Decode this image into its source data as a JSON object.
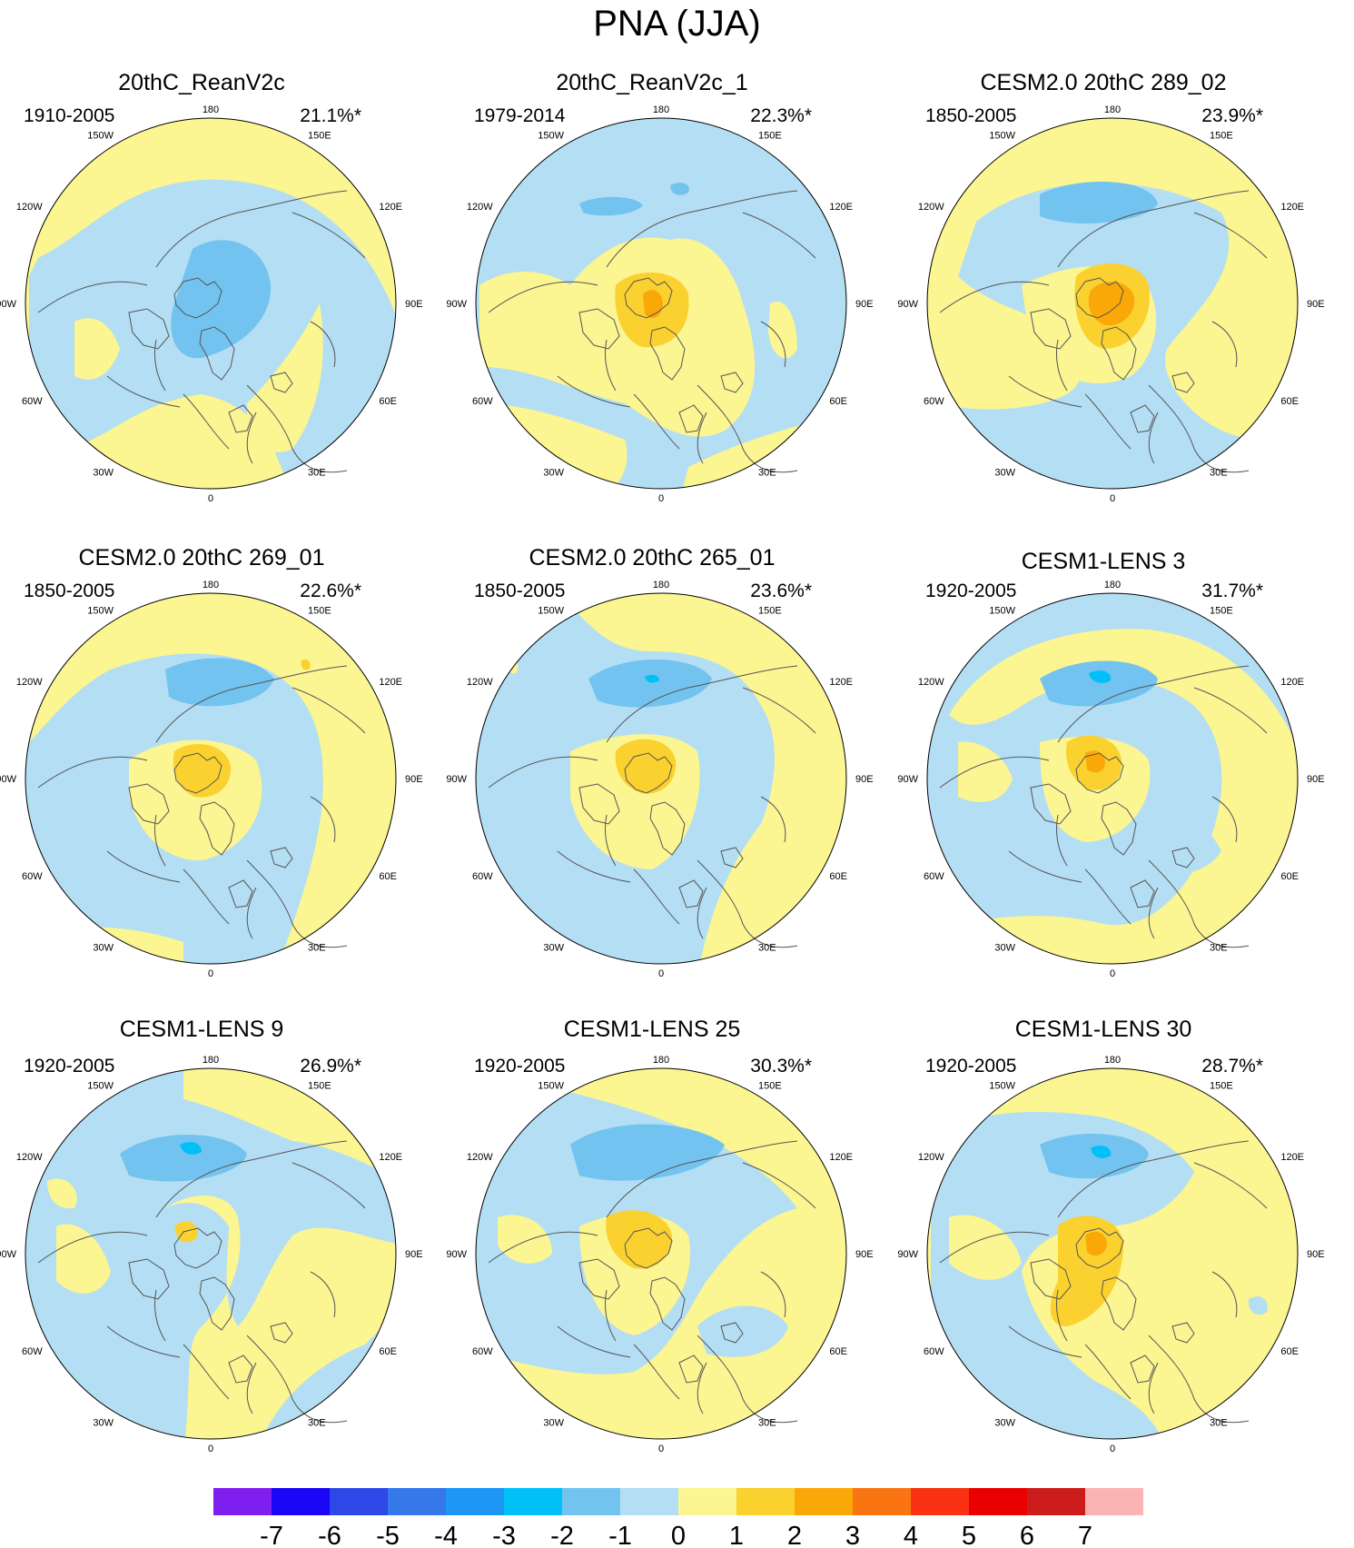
{
  "title": "PNA (JJA)",
  "colors": {
    "neg7": "#7f1fef",
    "neg6": "#1b06f5",
    "neg5": "#2e48e8",
    "neg4": "#3478ea",
    "neg3": "#1e96f6",
    "neg2": "#00c0f7",
    "neg1": "#72c3ef",
    "neg0": "#b4def3",
    "pos0": "#fbf592",
    "pos1": "#fad12f",
    "pos2": "#faa808",
    "pos3": "#fa7512",
    "pos4": "#fa3112",
    "pos5": "#ea0000",
    "pos6": "#cd1c1c",
    "pos7": "#fbb3b3"
  },
  "longitude_labels": [
    "180",
    "150E",
    "120E",
    "90E",
    "60E",
    "30E",
    "0",
    "30W",
    "60W",
    "90W",
    "120W",
    "150W"
  ],
  "panels": [
    {
      "title": "20thC_ReanV2c",
      "period": "1910-2005",
      "percent": "21.1%*"
    },
    {
      "title": "20thC_ReanV2c_1",
      "period": "1979-2014",
      "percent": "22.3%*"
    },
    {
      "title": "CESM2.0 20thC 289_02",
      "period": "1850-2005",
      "percent": "23.9%*"
    },
    {
      "title": "CESM2.0 20thC 269_01",
      "period": "1850-2005",
      "percent": "22.6%*"
    },
    {
      "title": "CESM2.0 20thC 265_01",
      "period": "1850-2005",
      "percent": "23.6%*"
    },
    {
      "title": "CESM1-LENS 3",
      "period": "1920-2005",
      "percent": "31.7%*"
    },
    {
      "title": "CESM1-LENS 9",
      "period": "1920-2005",
      "percent": "26.9%*"
    },
    {
      "title": "CESM1-LENS 25",
      "period": "1920-2005",
      "percent": "30.3%*"
    },
    {
      "title": "CESM1-LENS 30",
      "period": "1920-2005",
      "percent": "28.7%*"
    }
  ],
  "colorbar": {
    "labels": [
      "-7",
      "-6",
      "-5",
      "-4",
      "-3",
      "-2",
      "-1",
      "0",
      "1",
      "2",
      "3",
      "4",
      "5",
      "6",
      "7"
    ]
  }
}
